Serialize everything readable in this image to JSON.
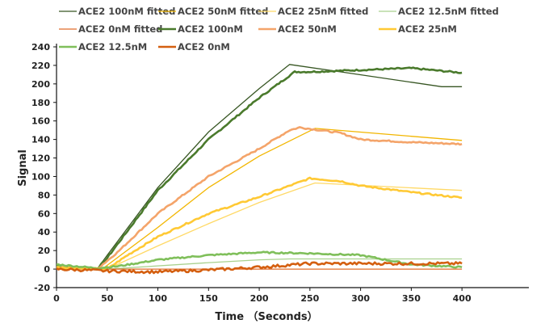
{
  "chart_data": {
    "type": "line",
    "title": "",
    "xlabel": "Time （Seconds）",
    "ylabel": "Signal",
    "xlim": [
      0,
      466
    ],
    "ylim": [
      -20,
      240
    ],
    "xticks": [
      0,
      50,
      100,
      150,
      200,
      250,
      300,
      350,
      400
    ],
    "yticks": [
      -20,
      0,
      20,
      40,
      60,
      80,
      100,
      120,
      140,
      160,
      180,
      200,
      220,
      240
    ],
    "grid": false,
    "legend_position": "top",
    "series": [
      {
        "name": "ACE2 100nM fitted",
        "color": "#375623",
        "width": 1.3,
        "x": [
          0,
          40,
          50,
          100,
          150,
          200,
          230,
          280,
          380,
          400
        ],
        "y": [
          3,
          0,
          15,
          88,
          148,
          195,
          221,
          213,
          197,
          197
        ]
      },
      {
        "name": "ACE2 50nM fitted",
        "color": "#f2b600",
        "width": 1.3,
        "x": [
          0,
          45,
          100,
          150,
          200,
          255,
          400
        ],
        "y": [
          2,
          0,
          45,
          88,
          122,
          152,
          139
        ]
      },
      {
        "name": "ACE2 25nM fitted",
        "color": "#ffd966",
        "width": 1.3,
        "x": [
          0,
          50,
          100,
          150,
          200,
          255,
          400
        ],
        "y": [
          2,
          0,
          25,
          49,
          72,
          93,
          85
        ]
      },
      {
        "name": "ACE2 12.5nM fitted",
        "color": "#a9d18e",
        "width": 1.3,
        "x": [
          0,
          50,
          150,
          200,
          230,
          400
        ],
        "y": [
          2,
          0,
          7,
          10,
          11,
          11
        ]
      },
      {
        "name": "ACE2 0nM fitted",
        "color": "#e06c2a",
        "width": 1.3,
        "x": [
          0,
          400
        ],
        "y": [
          0,
          0
        ]
      },
      {
        "name": "ACE2 100nM",
        "color": "#4a7a2c",
        "width": 2.6,
        "x": [
          0,
          40,
          50,
          100,
          150,
          200,
          235,
          250,
          300,
          350,
          400
        ],
        "y": [
          3,
          0,
          12,
          85,
          140,
          185,
          213,
          213,
          215,
          217,
          212
        ]
      },
      {
        "name": "ACE2 50nM",
        "color": "#f4a46a",
        "width": 2.6,
        "x": [
          0,
          40,
          60,
          100,
          150,
          200,
          230,
          240,
          280,
          300,
          350,
          400
        ],
        "y": [
          2,
          0,
          18,
          60,
          100,
          130,
          150,
          153,
          147,
          140,
          137,
          135
        ]
      },
      {
        "name": "ACE2 25nM",
        "color": "#ffc934",
        "width": 2.6,
        "x": [
          0,
          50,
          70,
          100,
          150,
          200,
          250,
          280,
          300,
          350,
          400
        ],
        "y": [
          2,
          0,
          15,
          35,
          60,
          78,
          98,
          95,
          90,
          83,
          77
        ]
      },
      {
        "name": "ACE2 12.5nM",
        "color": "#7fbf5a",
        "width": 2.6,
        "x": [
          0,
          40,
          60,
          100,
          150,
          200,
          250,
          300,
          350,
          400
        ],
        "y": [
          5,
          1,
          3,
          10,
          15,
          18,
          17,
          15,
          5,
          2
        ]
      },
      {
        "name": "ACE2 0nM",
        "color": "#d45f10",
        "width": 2.6,
        "x": [
          0,
          50,
          100,
          150,
          200,
          250,
          300,
          350,
          400
        ],
        "y": [
          0,
          -2,
          -3,
          -1,
          2,
          6,
          6,
          6,
          6
        ]
      }
    ]
  }
}
